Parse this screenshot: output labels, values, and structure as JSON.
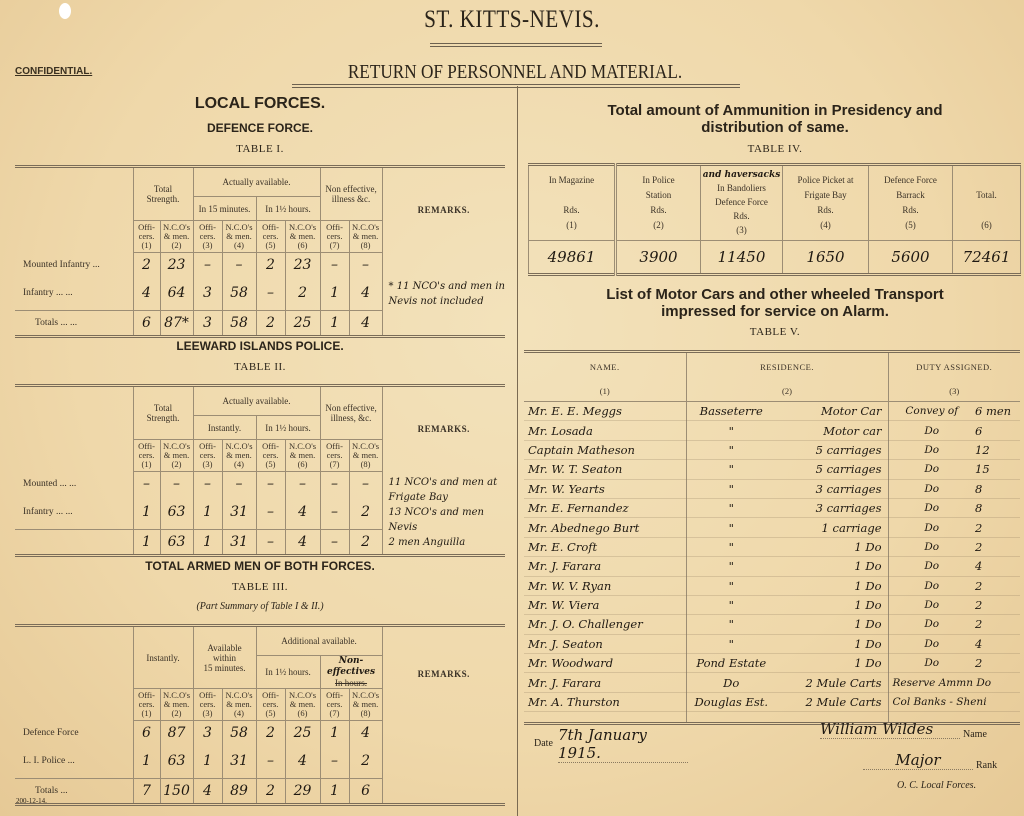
{
  "header": {
    "title": "ST. KITTS-NEVIS.",
    "confidential": "CONFIDENTIAL.",
    "subtitle": "RETURN OF PERSONNEL AND MATERIAL."
  },
  "local_forces": {
    "heading": "LOCAL FORCES.",
    "subheading": "DEFENCE FORCE.",
    "table1": {
      "caption": "TABLE I.",
      "groups": {
        "total": "Total\nStrength.",
        "actual": "Actually available.",
        "sub1": "In 15 minutes.",
        "sub2": "In 1½ hours.",
        "noneff": "Non effective,\nillness &c.",
        "remarks": "REMARKS."
      },
      "cols": [
        "Offi-\ncers.\n(1)",
        "N.C.O's\n& men.\n(2)",
        "Offi-\ncers.\n(3)",
        "N.C.O's\n& men.\n(4)",
        "Offi-\ncers.\n(5)",
        "N.C.O's\n& men.\n(6)",
        "Offi-\ncers.\n(7)",
        "N.C.O's\n& men.\n(8)"
      ],
      "rows": [
        {
          "label": "Mounted Infantry  ...",
          "values": [
            "2",
            "23",
            "–",
            "–",
            "2",
            "23",
            "–",
            "–"
          ]
        },
        {
          "label": "Infantry   ...   ...",
          "values": [
            "4",
            "64",
            "3",
            "58",
            "–",
            "2",
            "1",
            "4"
          ]
        }
      ],
      "totals": {
        "label": "Totals   ...   ...",
        "values": [
          "6",
          "87*",
          "3",
          "58",
          "2",
          "25",
          "1",
          "4"
        ]
      },
      "remarks": "* 11 NCO's and men in Nevis not included"
    }
  },
  "police": {
    "heading": "LEEWARD ISLANDS POLICE.",
    "table2": {
      "caption": "TABLE II.",
      "groups": {
        "total": "Total\nStrength.",
        "actual": "Actually available.",
        "sub1": "Instantly.",
        "sub2": "In 1½ hours.",
        "noneff": "Non effective,\nillness, &c.",
        "remarks": "REMARKS."
      },
      "cols": [
        "Offi-\ncers.\n(1)",
        "N.C.O's\n& men.\n(2)",
        "Offi-\ncers.\n(3)",
        "N.C.O's\n& men.\n(4)",
        "Offi-\ncers.\n(5)",
        "N.C.O's\n& men.\n(6)",
        "Offi-\ncers.\n(7)",
        "N.C.O's\n& men.\n(8)"
      ],
      "rows": [
        {
          "label": "Mounted   ...   ...",
          "values": [
            "–",
            "–",
            "–",
            "–",
            "–",
            "–",
            "–",
            "–"
          ]
        },
        {
          "label": "Infantry   ...   ...",
          "values": [
            "1",
            "63",
            "1",
            "31",
            "–",
            "4",
            "–",
            "2"
          ]
        }
      ],
      "totals": {
        "label": "",
        "values": [
          "1",
          "63",
          "1",
          "31",
          "–",
          "4",
          "–",
          "2"
        ]
      },
      "remarks": "11 NCO's and men at Frigate Bay\n13 NCO's and men Nevis\n2 men Anguilla"
    }
  },
  "armed_men": {
    "heading": "TOTAL ARMED MEN OF BOTH FORCES.",
    "table3": {
      "caption": "TABLE III.",
      "note": "(Part Summary of Table I & II.)",
      "groups": {
        "instantly": "Instantly.",
        "within": "Available\nwithin\n15 minutes.",
        "additional": "Additional available.",
        "sub1": "In 1½ hours.",
        "sub2_printed": "In      hours.",
        "sub2_handwritten": "Non-effectives",
        "remarks": "REMARKS."
      },
      "cols": [
        "Offi-\ncers.\n(1)",
        "N.C.O's\n& men.\n(2)",
        "Offi-\ncers.\n(3)",
        "N.C.O's\n& men.\n(4)",
        "Offi-\ncers.\n(5)",
        "N.C.O's\n& men.\n(6)",
        "Offi-\ncers.\n(7)",
        "N.C.O's\n& men.\n(8)"
      ],
      "rows": [
        {
          "label": "Defence Force",
          "values": [
            "6",
            "87",
            "3",
            "58",
            "2",
            "25",
            "1",
            "4"
          ]
        },
        {
          "label": "L. I. Police   ...",
          "values": [
            "1",
            "63",
            "1",
            "31",
            "–",
            "4",
            "–",
            "2"
          ]
        }
      ],
      "totals": {
        "label": "Totals   ...",
        "values": [
          "7",
          "150",
          "4",
          "89",
          "2",
          "29",
          "1",
          "6"
        ]
      },
      "remarks": ""
    },
    "form_number": "200-12-14."
  },
  "ammunition": {
    "heading": "Total amount of Ammunition in Presidency and\ndistribution of same.",
    "table4": {
      "caption": "TABLE IV.",
      "cols": [
        {
          "head": "In Magazine\n\nRds.\n(1)",
          "anno": ""
        },
        {
          "head": "In Police\nStation\nRds.\n(2)",
          "anno": ""
        },
        {
          "head": "In Bandoliers\nDefence Force\nRds.\n(3)",
          "anno": "and haversacks"
        },
        {
          "head": "Police Picket at\nFrigate Bay\nRds.\n(4)",
          "anno": ""
        },
        {
          "head": "Defence Force\nBarrack\nRds.\n(5)",
          "anno": ""
        },
        {
          "head": "\nTotal.\n\n(6)",
          "anno": ""
        }
      ],
      "values": [
        "49861",
        "3900",
        "11450",
        "1650",
        "5600",
        "72461"
      ]
    }
  },
  "transport": {
    "heading": "List of Motor Cars and other wheeled Transport\nimpressed for service on Alarm.",
    "table5": {
      "caption": "TABLE V.",
      "cols": [
        {
          "head": "NAME.",
          "num": "(1)"
        },
        {
          "head": "RESIDENCE.",
          "num": "(2)"
        },
        {
          "head": "DUTY ASSIGNED.",
          "num": "(3)"
        }
      ],
      "rows": [
        {
          "name": "Mr. E. E. Meggs",
          "residence": "Basseterre",
          "vehicle": "Motor Car",
          "duty": "Convey of",
          "men": "6 men"
        },
        {
          "name": "Mr. Losada",
          "residence": "\"",
          "vehicle": "Motor car",
          "duty": "Do",
          "men": "6"
        },
        {
          "name": "Captain Matheson",
          "residence": "\"",
          "vehicle": "5 carriages",
          "duty": "Do",
          "men": "12"
        },
        {
          "name": "Mr. W. T. Seaton",
          "residence": "\"",
          "vehicle": "5 carriages",
          "duty": "Do",
          "men": "15"
        },
        {
          "name": "Mr. W. Yearts",
          "residence": "\"",
          "vehicle": "3 carriages",
          "duty": "Do",
          "men": "8"
        },
        {
          "name": "Mr. E. Fernandez",
          "residence": "\"",
          "vehicle": "3 carriages",
          "duty": "Do",
          "men": "8"
        },
        {
          "name": "Mr. Abednego Burt",
          "residence": "\"",
          "vehicle": "1 carriage",
          "duty": "Do",
          "men": "2"
        },
        {
          "name": "Mr. E. Croft",
          "residence": "\"",
          "vehicle": "1 Do",
          "duty": "Do",
          "men": "2"
        },
        {
          "name": "Mr. J. Farara",
          "residence": "\"",
          "vehicle": "1 Do",
          "duty": "Do",
          "men": "4"
        },
        {
          "name": "Mr. W. V. Ryan",
          "residence": "\"",
          "vehicle": "1 Do",
          "duty": "Do",
          "men": "2"
        },
        {
          "name": "Mr. W. Viera",
          "residence": "\"",
          "vehicle": "1 Do",
          "duty": "Do",
          "men": "2"
        },
        {
          "name": "Mr. J. O. Challenger",
          "residence": "\"",
          "vehicle": "1 Do",
          "duty": "Do",
          "men": "2"
        },
        {
          "name": "Mr. J. Seaton",
          "residence": "\"",
          "vehicle": "1 Do",
          "duty": "Do",
          "men": "4"
        },
        {
          "name": "Mr. Woodward",
          "residence": "Pond Estate",
          "vehicle": "1 Do",
          "duty": "Do",
          "men": "2"
        },
        {
          "name": "Mr. J. Farara",
          "residence": "Do",
          "vehicle": "2 Mule Carts",
          "duty": "Reserve Ammn Do",
          "men": ""
        },
        {
          "name": "Mr. A. Thurston",
          "residence": "Douglas Est.",
          "vehicle": "2 Mule Carts",
          "duty": "Col Banks - Sheni",
          "men": ""
        }
      ]
    }
  },
  "footer": {
    "date_label": "Date",
    "date_value": "7th January 1915.",
    "name_label": "Name",
    "name_value": "William Wildes",
    "rank_label": "Rank",
    "rank_value": "Major",
    "office": "O. C. Local Forces."
  }
}
